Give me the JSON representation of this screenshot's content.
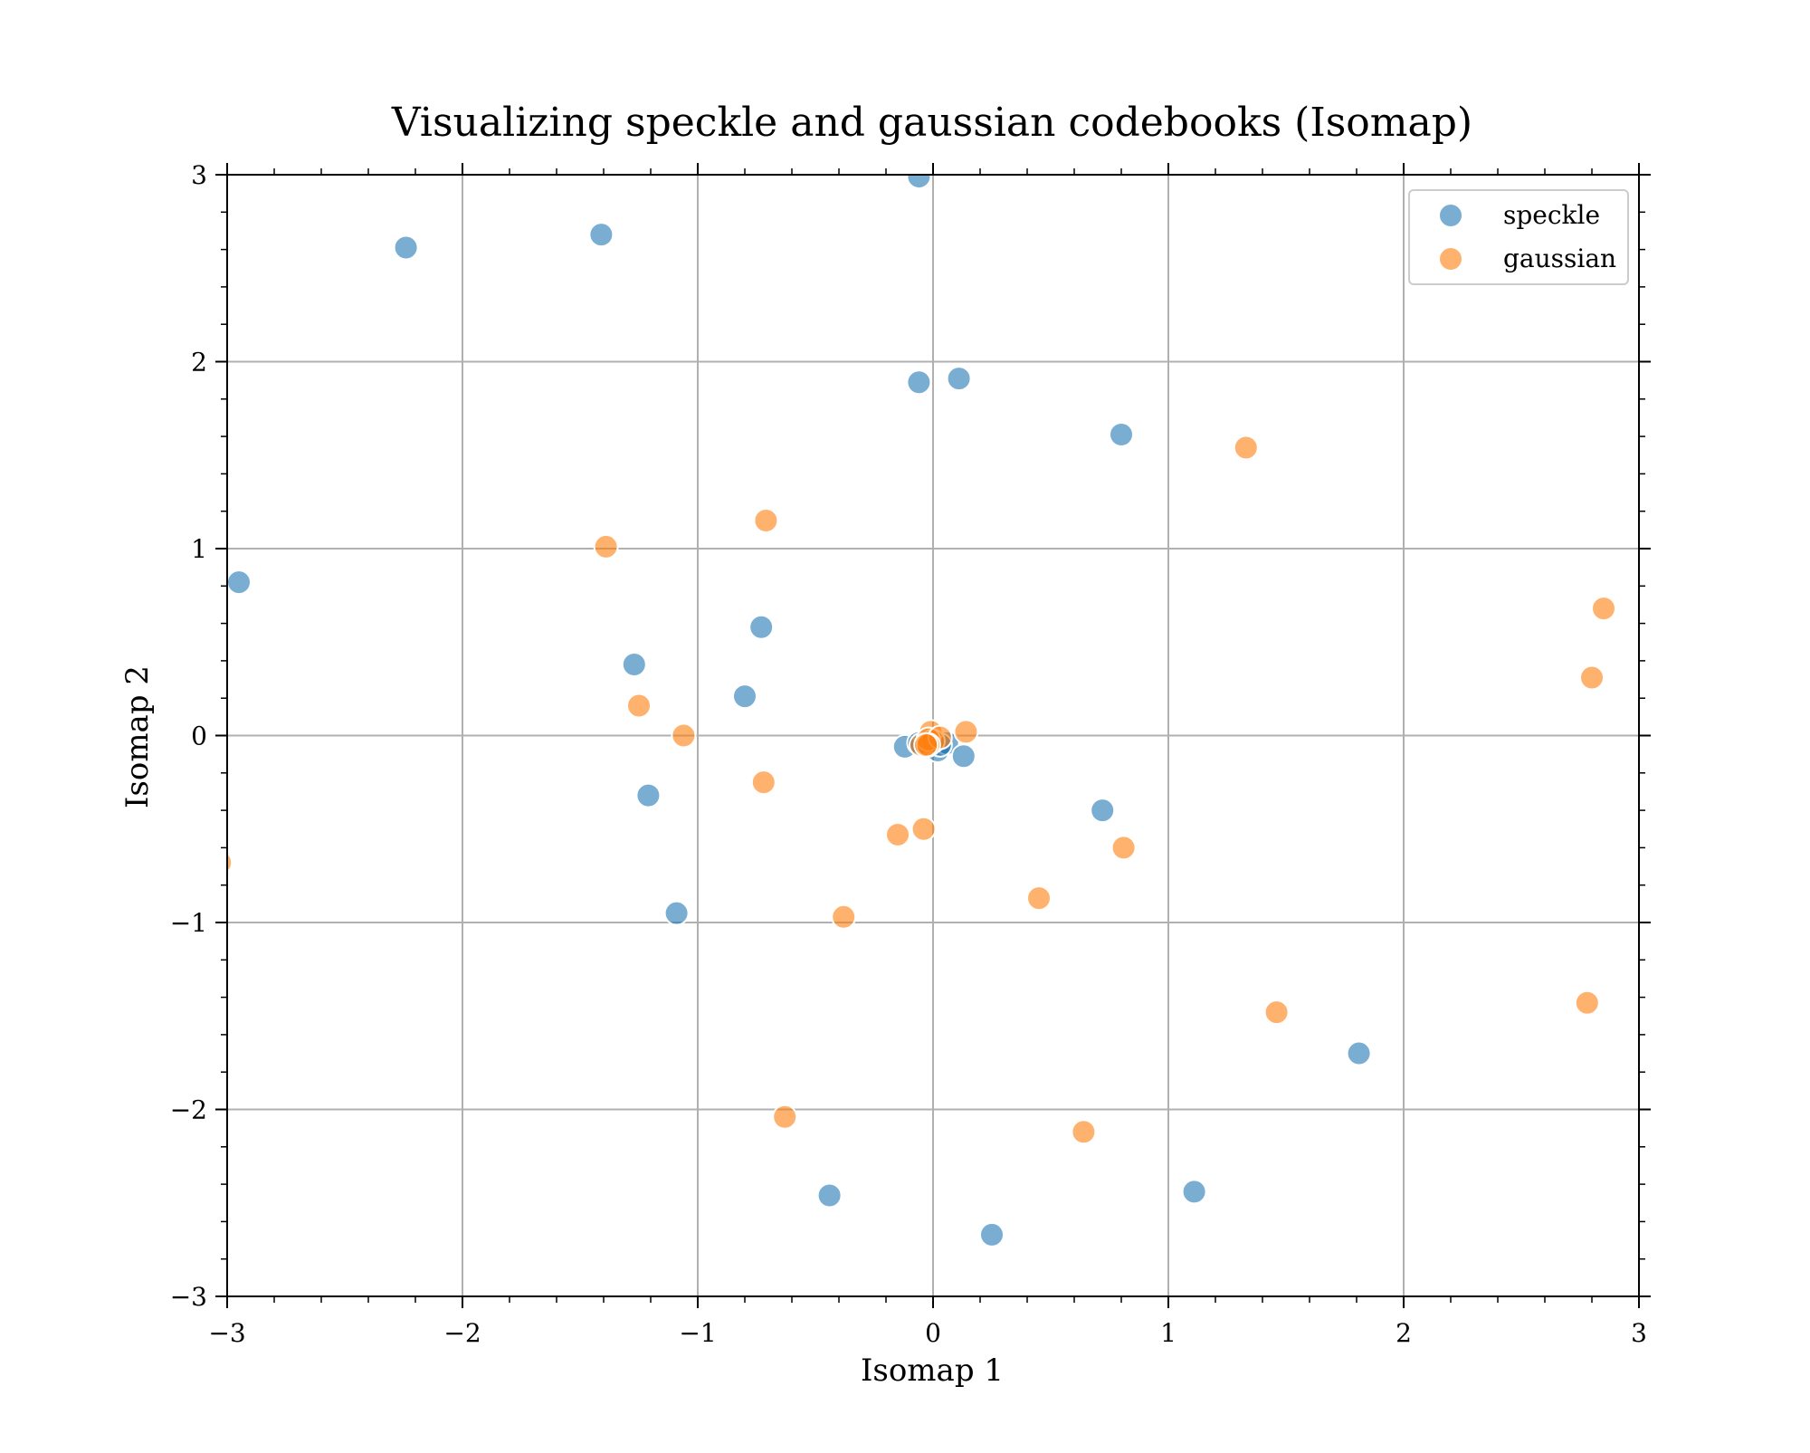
{
  "chart_data": {
    "type": "scatter",
    "title": "Visualizing speckle and gaussian codebooks (Isomap)",
    "xlabel": "Isomap 1",
    "ylabel": "Isomap 2",
    "xlim": [
      -3,
      3
    ],
    "ylim": [
      -3,
      3
    ],
    "xticks": [
      -3,
      -2,
      -1,
      0,
      1,
      2,
      3
    ],
    "yticks": [
      -3,
      -2,
      -1,
      0,
      1,
      2,
      3
    ],
    "xtick_labels": [
      "−3",
      "−2",
      "−1",
      "0",
      "1",
      "2",
      "3"
    ],
    "ytick_labels": [
      "−3",
      "−2",
      "−1",
      "0",
      "1",
      "2",
      "3"
    ],
    "grid": true,
    "legend_position": "top-right",
    "series": [
      {
        "name": "speckle",
        "color": "#1f77b4",
        "points": [
          [
            -0.06,
            2.99
          ],
          [
            -2.24,
            2.61
          ],
          [
            -1.41,
            2.68
          ],
          [
            -0.06,
            1.89
          ],
          [
            0.11,
            1.91
          ],
          [
            0.8,
            1.61
          ],
          [
            -2.95,
            0.82
          ],
          [
            -0.73,
            0.58
          ],
          [
            -1.27,
            0.38
          ],
          [
            -0.8,
            0.21
          ],
          [
            -0.12,
            -0.06
          ],
          [
            -0.06,
            -0.04
          ],
          [
            0.02,
            -0.08
          ],
          [
            0.06,
            -0.04
          ],
          [
            0.13,
            -0.11
          ],
          [
            0.03,
            -0.05
          ],
          [
            -1.21,
            -0.32
          ],
          [
            0.72,
            -0.4
          ],
          [
            -1.09,
            -0.95
          ],
          [
            1.81,
            -1.7
          ],
          [
            -0.44,
            -2.46
          ],
          [
            0.25,
            -2.67
          ],
          [
            1.11,
            -2.44
          ]
        ]
      },
      {
        "name": "gaussian",
        "color": "#ff7f0e",
        "points": [
          [
            1.33,
            1.54
          ],
          [
            -0.71,
            1.15
          ],
          [
            -1.39,
            1.01
          ],
          [
            2.85,
            0.68
          ],
          [
            2.8,
            0.31
          ],
          [
            -1.25,
            0.16
          ],
          [
            -1.06,
            0.0
          ],
          [
            0.14,
            0.02
          ],
          [
            -0.01,
            0.02
          ],
          [
            0.0,
            -0.03
          ],
          [
            -0.05,
            -0.05
          ],
          [
            -0.02,
            -0.02
          ],
          [
            0.03,
            -0.01
          ],
          [
            -0.72,
            -0.25
          ],
          [
            -0.04,
            -0.5
          ],
          [
            -0.15,
            -0.53
          ],
          [
            0.81,
            -0.6
          ],
          [
            -3.03,
            -0.68
          ],
          [
            0.45,
            -0.87
          ],
          [
            -0.38,
            -0.97
          ],
          [
            1.46,
            -1.48
          ],
          [
            2.78,
            -1.43
          ],
          [
            -0.63,
            -2.04
          ],
          [
            0.64,
            -2.12
          ],
          [
            -0.02,
            -0.05
          ],
          [
            -0.03,
            -0.05
          ]
        ]
      }
    ]
  }
}
